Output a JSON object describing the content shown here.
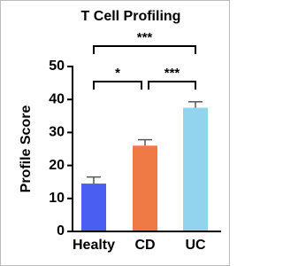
{
  "chart_data": {
    "type": "bar",
    "title": "T Cell Profiling",
    "ylabel": "Profile Score",
    "categories": [
      "Healty",
      "CD",
      "UC"
    ],
    "values": [
      14.5,
      26,
      37.5
    ],
    "errors": [
      2,
      1.8,
      1.8
    ],
    "colors": [
      "#4a5ff0",
      "#f07a45",
      "#92d4ee"
    ],
    "ylim": [
      0,
      50
    ],
    "yticks": [
      0,
      10,
      20,
      30,
      40,
      50
    ],
    "annotations": [
      "*",
      "***",
      "***"
    ]
  }
}
